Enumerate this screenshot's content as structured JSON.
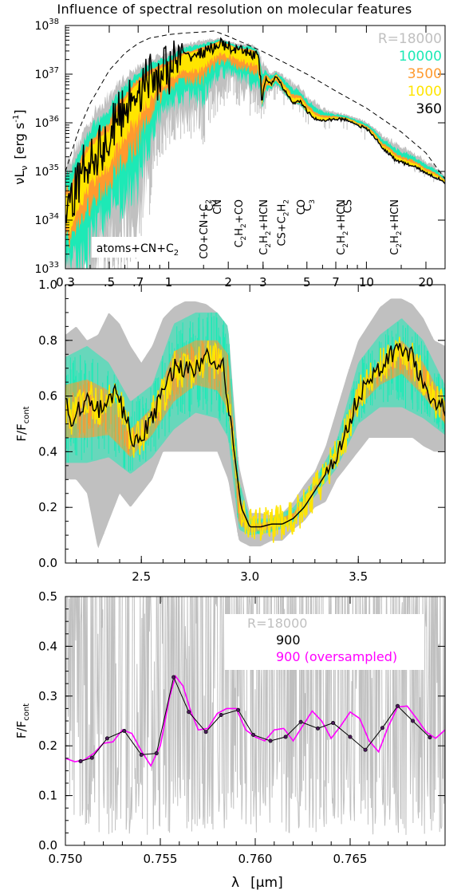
{
  "title": "Influence of spectral resolution on molecular features",
  "colors": {
    "R18000": "#c0c0c0",
    "R10000": "#1de9b6",
    "R3500": "#ff9a2e",
    "R1000": "#ffe500",
    "R360": "#000000",
    "oversampled": "#ff00ff",
    "envelope": "#000000"
  },
  "chart_data": [
    {
      "type": "line",
      "ylabel_text": "νL",
      "ylabel_sub": "ν",
      "ylabel_unit": "[erg s",
      "ylabel_unit_sup": "-1",
      "ylabel_unit_end": "]",
      "xscale": "log",
      "yscale": "log",
      "xlim": [
        0.3,
        25
      ],
      "ylim": [
        1e+33,
        1e+38
      ],
      "xticks": [
        0.3,
        0.5,
        0.7,
        1,
        2,
        3,
        5,
        7,
        10,
        20
      ],
      "xticklabels": [
        "0.3",
        ".5",
        ".7",
        "1",
        "2",
        "3",
        "5",
        "7",
        "10",
        "20"
      ],
      "yticks": [
        1e+33,
        1e+34,
        1e+35,
        1e+36,
        1e+37,
        1e+38
      ],
      "legend": [
        {
          "label": "R=18000",
          "color": "#c0c0c0"
        },
        {
          "label": "10000",
          "color": "#1de9b6"
        },
        {
          "label": "3500",
          "color": "#ff9a2e"
        },
        {
          "label": "1000",
          "color": "#ffe500"
        },
        {
          "label": "360",
          "color": "#000000"
        }
      ],
      "legend_position": "top-right",
      "annotations": [
        {
          "text": "atoms+CN+C",
          "sub": "2",
          "x": 0.43
        },
        {
          "text": "CO+CN+C",
          "sub": "2",
          "x": 1.5
        },
        {
          "text": "C",
          "sub": "2",
          "x": 1.6
        },
        {
          "text": "CN",
          "sub": "",
          "x": 1.75
        },
        {
          "text": "C",
          "sub": "2",
          "tail": "H",
          "sub2": "2",
          "tail2": "+CO",
          "x": 2.25
        },
        {
          "text": "C",
          "sub": "2",
          "tail": "H",
          "sub2": "2",
          "tail2": "+HCN",
          "x": 3.0
        },
        {
          "text": "CS+C",
          "sub": "2",
          "tail": "H",
          "sub2": "2",
          "tail2": "",
          "x": 3.7
        },
        {
          "text": "CO",
          "sub": "",
          "x": 4.65
        },
        {
          "text": "C",
          "sub": "3",
          "x": 5.0
        },
        {
          "text": "C",
          "sub": "2",
          "tail": "H",
          "sub2": "2",
          "tail2": "+HCN",
          "x": 7.4
        },
        {
          "text": "CS",
          "sub": "",
          "x": 8.0
        },
        {
          "text": "C",
          "sub": "2",
          "tail": "H",
          "sub2": "2",
          "tail2": "+HCN",
          "x": 13.8
        }
      ],
      "series": [
        {
          "name": "R=18000",
          "x": [
            0.3,
            0.35,
            0.4,
            0.5,
            0.6,
            0.7,
            0.8,
            1.0,
            1.2,
            1.5,
            1.8,
            2.0,
            2.3,
            2.6,
            2.8,
            3.0,
            3.2,
            3.5,
            4.0,
            5.0,
            6.0,
            7.0,
            8.0,
            9.0,
            10,
            12,
            15,
            20,
            25
          ],
          "y_low": [
            2e+32,
            1e+32,
            1e+32,
            1e+33,
            1e+33,
            2e+33,
            2e+34,
            5e+35,
            8e+35,
            5e+35,
            3e+36,
            4e+36,
            3e+36,
            2e+36,
            2e+36,
            1.5e+36,
            4e+36,
            5e+36,
            3e+36,
            1.5e+36,
            1.1e+36,
            1.2e+36,
            1.2e+36,
            9e+35,
            7e+35,
            3.5e+35,
            1.6e+35,
            1e+35,
            6e+34
          ],
          "y_high": [
            2e+35,
            5e+35,
            1.5e+36,
            5e+36,
            1.1e+37,
            1.7e+37,
            2.3e+37,
            3.3e+37,
            4.5e+37,
            5.5e+37,
            5.8e+37,
            5e+37,
            4.3e+37,
            4.5e+37,
            3.5e+37,
            2e+37,
            1.2e+37,
            1.2e+37,
            9e+36,
            4e+36,
            2.2e+36,
            1.7e+36,
            1.5e+36,
            1.3e+36,
            1.1e+36,
            6e+35,
            3.5e+35,
            1.8e+35,
            8e+34
          ]
        },
        {
          "name": "360",
          "x": [
            0.3,
            0.32,
            0.35,
            0.4,
            0.45,
            0.5,
            0.6,
            0.7,
            0.8,
            1.0,
            1.2,
            1.5,
            1.7,
            1.8,
            2.0,
            2.2,
            2.5,
            2.8,
            2.95,
            3.1,
            3.3,
            3.5,
            3.8,
            4.2,
            4.6,
            5.0,
            5.5,
            6.0,
            7.0,
            8.0,
            9.0,
            10,
            11,
            12,
            14,
            16,
            18,
            20,
            25
          ],
          "y": [
            2e+34,
            1.5e+34,
            6e+34,
            2e+35,
            3e+35,
            4e+35,
            2e+36,
            5e+36,
            8e+36,
            1.3e+37,
            2.2e+37,
            2.8e+37,
            3.6e+37,
            4.3e+37,
            3.7e+37,
            3e+37,
            2.8e+37,
            2.5e+37,
            2.5e+36,
            8e+36,
            6e+36,
            9e+36,
            5e+36,
            2.5e+36,
            2.8e+36,
            1.7e+36,
            1.2e+36,
            1.1e+36,
            1.2e+36,
            1.15e+36,
            9e+35,
            7.5e+35,
            5e+35,
            3e+35,
            1.7e+35,
            1.4e+35,
            1.2e+35,
            9e+34,
            6e+34
          ]
        },
        {
          "name": "envelope",
          "x": [
            0.3,
            0.35,
            0.4,
            0.5,
            0.6,
            0.7,
            0.8,
            1.0,
            1.2,
            1.5,
            1.7,
            2.0,
            3.0,
            5.0,
            7.0,
            10,
            15,
            20,
            25
          ],
          "y": [
            1e+35,
            7e+35,
            2.5e+36,
            1.2e+37,
            2.7e+37,
            4.3e+37,
            5.5e+37,
            6.5e+37,
            7e+37,
            7.4e+37,
            7.7e+37,
            6e+37,
            2.9e+37,
            1e+37,
            4.5e+36,
            2e+36,
            6.5e+35,
            2.4e+35,
            7e+34
          ]
        }
      ]
    },
    {
      "type": "line",
      "ylabel_text": "F/F",
      "ylabel_sub": "cont",
      "xlim": [
        2.15,
        3.9
      ],
      "ylim": [
        0.0,
        1.0
      ],
      "xticks": [
        2.5,
        3.0,
        3.5
      ],
      "xticklabels": [
        "2.5",
        "3.0",
        "3.5"
      ],
      "yticks": [
        0.0,
        0.2,
        0.4,
        0.6,
        0.8,
        1.0
      ],
      "yticklabels": [
        "0.0",
        "0.2",
        "0.4",
        "0.6",
        "0.8",
        "1.0"
      ],
      "series": [
        {
          "name": "R=18000",
          "x": [
            2.15,
            2.2,
            2.25,
            2.3,
            2.35,
            2.4,
            2.45,
            2.5,
            2.55,
            2.6,
            2.65,
            2.7,
            2.75,
            2.8,
            2.85,
            2.9,
            2.95,
            3.0,
            3.05,
            3.1,
            3.15,
            3.2,
            3.25,
            3.3,
            3.35,
            3.4,
            3.45,
            3.5,
            3.55,
            3.6,
            3.65,
            3.7,
            3.75,
            3.8,
            3.85,
            3.9
          ],
          "y_low": [
            0.3,
            0.3,
            0.25,
            0.05,
            0.15,
            0.25,
            0.2,
            0.25,
            0.3,
            0.4,
            0.4,
            0.4,
            0.4,
            0.4,
            0.4,
            0.3,
            0.08,
            0.06,
            0.06,
            0.08,
            0.08,
            0.12,
            0.15,
            0.2,
            0.22,
            0.3,
            0.35,
            0.4,
            0.45,
            0.45,
            0.45,
            0.45,
            0.45,
            0.42,
            0.4,
            0.4
          ],
          "y_high": [
            0.82,
            0.85,
            0.8,
            0.82,
            0.9,
            0.86,
            0.78,
            0.72,
            0.78,
            0.88,
            0.92,
            0.94,
            0.94,
            0.93,
            0.9,
            0.85,
            0.35,
            0.18,
            0.18,
            0.17,
            0.18,
            0.22,
            0.28,
            0.33,
            0.42,
            0.55,
            0.68,
            0.8,
            0.86,
            0.92,
            0.95,
            0.95,
            0.93,
            0.88,
            0.8,
            0.78
          ]
        },
        {
          "name": "R=10000",
          "x": [
            2.15,
            2.25,
            2.35,
            2.45,
            2.55,
            2.65,
            2.75,
            2.85,
            2.9,
            2.95,
            3.0,
            3.1,
            3.2,
            3.3,
            3.4,
            3.5,
            3.6,
            3.7,
            3.8,
            3.9
          ],
          "y_low": [
            0.36,
            0.36,
            0.38,
            0.32,
            0.38,
            0.48,
            0.54,
            0.52,
            0.45,
            0.12,
            0.1,
            0.11,
            0.14,
            0.24,
            0.34,
            0.5,
            0.56,
            0.56,
            0.52,
            0.46
          ],
          "y_high": [
            0.74,
            0.78,
            0.72,
            0.58,
            0.64,
            0.86,
            0.9,
            0.9,
            0.85,
            0.3,
            0.16,
            0.16,
            0.2,
            0.3,
            0.44,
            0.72,
            0.82,
            0.88,
            0.8,
            0.64
          ]
        },
        {
          "name": "R=3500",
          "x": [
            2.15,
            2.25,
            2.35,
            2.45,
            2.55,
            2.65,
            2.75,
            2.85,
            2.9,
            2.95,
            3.0,
            3.1,
            3.2,
            3.3,
            3.4,
            3.5,
            3.6,
            3.7,
            3.8,
            3.9
          ],
          "y_low": [
            0.45,
            0.45,
            0.46,
            0.38,
            0.46,
            0.58,
            0.64,
            0.62,
            0.55,
            0.14,
            0.11,
            0.12,
            0.16,
            0.26,
            0.37,
            0.56,
            0.64,
            0.68,
            0.6,
            0.5
          ],
          "y_high": [
            0.64,
            0.66,
            0.62,
            0.48,
            0.56,
            0.76,
            0.8,
            0.8,
            0.75,
            0.25,
            0.14,
            0.15,
            0.18,
            0.28,
            0.4,
            0.64,
            0.72,
            0.8,
            0.72,
            0.58
          ]
        },
        {
          "name": "360",
          "x": [
            2.15,
            2.18,
            2.22,
            2.26,
            2.3,
            2.34,
            2.38,
            2.42,
            2.46,
            2.5,
            2.55,
            2.6,
            2.65,
            2.7,
            2.75,
            2.8,
            2.85,
            2.88,
            2.92,
            2.96,
            3.0,
            3.05,
            3.1,
            3.15,
            3.2,
            3.25,
            3.3,
            3.35,
            3.4,
            3.45,
            3.5,
            3.55,
            3.6,
            3.65,
            3.7,
            3.75,
            3.8,
            3.85,
            3.9
          ],
          "y": [
            0.57,
            0.52,
            0.56,
            0.6,
            0.55,
            0.58,
            0.62,
            0.54,
            0.44,
            0.45,
            0.53,
            0.6,
            0.7,
            0.7,
            0.69,
            0.75,
            0.72,
            0.7,
            0.45,
            0.2,
            0.13,
            0.13,
            0.14,
            0.14,
            0.16,
            0.2,
            0.26,
            0.32,
            0.38,
            0.48,
            0.6,
            0.65,
            0.7,
            0.75,
            0.76,
            0.74,
            0.65,
            0.58,
            0.55
          ]
        }
      ]
    },
    {
      "type": "line",
      "xlabel_text": "λ",
      "xlabel_unit": "[μm]",
      "ylabel_text": "F/F",
      "ylabel_sub": "cont",
      "xlim": [
        0.75,
        0.77
      ],
      "ylim": [
        0.0,
        0.5
      ],
      "xticks": [
        0.75,
        0.755,
        0.76,
        0.765
      ],
      "xticklabels": [
        "0.750",
        "0.755",
        "0.760",
        "0.765"
      ],
      "yticks": [
        0.0,
        0.1,
        0.2,
        0.3,
        0.4,
        0.5
      ],
      "yticklabels": [
        "0.0",
        "0.1",
        "0.2",
        "0.3",
        "0.4",
        "0.5"
      ],
      "legend": [
        {
          "label": "R=18000",
          "color": "#c0c0c0"
        },
        {
          "label": "900",
          "color": "#000000"
        },
        {
          "label": "900 (oversampled)",
          "color": "#ff00ff"
        }
      ],
      "legend_position": "top-center",
      "series": [
        {
          "name": "900",
          "x": [
            0.7508,
            0.7514,
            0.7522,
            0.7531,
            0.754,
            0.7548,
            0.7557,
            0.7565,
            0.7574,
            0.7582,
            0.7591,
            0.7599,
            0.7608,
            0.7616,
            0.7624,
            0.7633,
            0.7641,
            0.765,
            0.7658,
            0.7667,
            0.7675,
            0.7683,
            0.7692
          ],
          "y": [
            0.169,
            0.176,
            0.215,
            0.23,
            0.182,
            0.185,
            0.338,
            0.268,
            0.228,
            0.262,
            0.272,
            0.222,
            0.21,
            0.218,
            0.248,
            0.235,
            0.246,
            0.218,
            0.192,
            0.236,
            0.28,
            0.25,
            0.217
          ]
        },
        {
          "name": "900 (oversampled)",
          "x": [
            0.75,
            0.7505,
            0.751,
            0.7515,
            0.752,
            0.7525,
            0.753,
            0.7535,
            0.754,
            0.7545,
            0.755,
            0.7555,
            0.7558,
            0.7562,
            0.7566,
            0.757,
            0.7575,
            0.758,
            0.7585,
            0.759,
            0.7595,
            0.76,
            0.7605,
            0.761,
            0.7615,
            0.762,
            0.7625,
            0.763,
            0.7635,
            0.764,
            0.7645,
            0.765,
            0.7655,
            0.766,
            0.7665,
            0.767,
            0.7675,
            0.768,
            0.7685,
            0.769,
            0.7695,
            0.77
          ],
          "y": [
            0.175,
            0.168,
            0.172,
            0.185,
            0.205,
            0.208,
            0.232,
            0.225,
            0.19,
            0.16,
            0.2,
            0.3,
            0.34,
            0.32,
            0.27,
            0.232,
            0.235,
            0.265,
            0.275,
            0.275,
            0.232,
            0.218,
            0.21,
            0.232,
            0.235,
            0.21,
            0.24,
            0.27,
            0.25,
            0.215,
            0.24,
            0.268,
            0.255,
            0.21,
            0.188,
            0.238,
            0.278,
            0.28,
            0.255,
            0.228,
            0.215,
            0.232
          ]
        }
      ]
    }
  ]
}
